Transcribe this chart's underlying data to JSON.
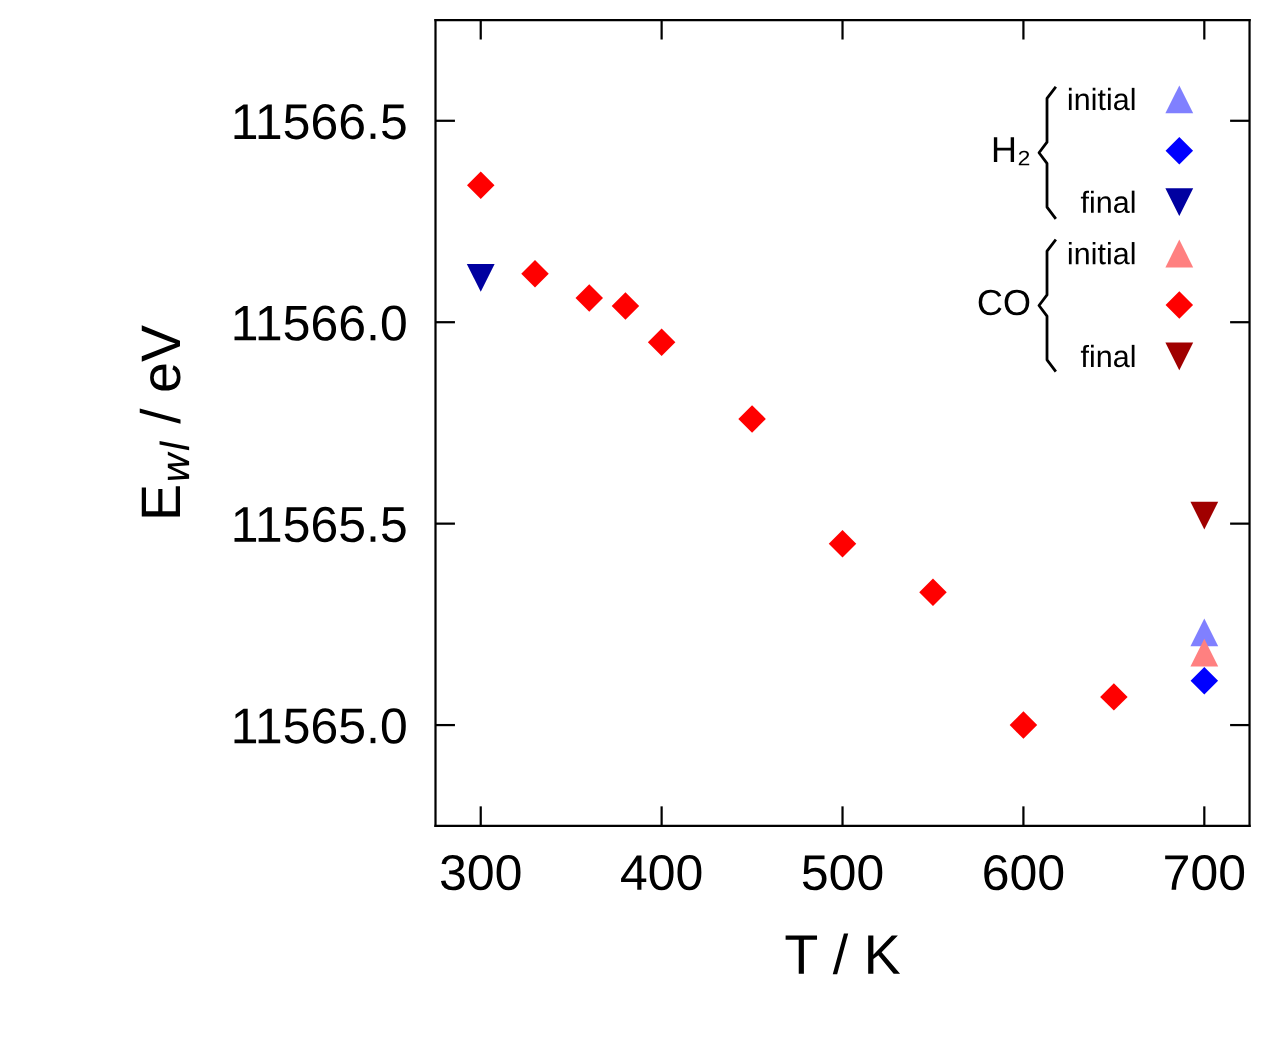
{
  "chart_data": {
    "type": "scatter",
    "xlabel": "T / K",
    "ylabel": "E$_{wl}$ / eV",
    "xlim": [
      275,
      725
    ],
    "xticks": [
      300,
      400,
      500,
      600,
      700
    ],
    "ylim": [
      11564.75,
      11566.75
    ],
    "yticks": [
      {
        "value": 11565.0,
        "label": "11565.0"
      },
      {
        "value": 11565.5,
        "label": "11565.5"
      },
      {
        "value": 11566.0,
        "label": "11566.0"
      },
      {
        "value": 11566.5,
        "label": "11566.5"
      }
    ],
    "grid": false,
    "legend": "top right",
    "annotations": [
      "H₂",
      "CO"
    ],
    "series": [
      {
        "name": "initial",
        "color": "#8080ff",
        "marker": "triangle",
        "x": [
          700
        ],
        "values": [
          11565.23
        ]
      },
      {
        "color": "#0000ff",
        "marker": "diamond",
        "x": [
          700
        ],
        "values": [
          11565.11
        ]
      },
      {
        "name": "final",
        "color": "#0000a0",
        "marker": "triangle_down",
        "x": [
          300
        ],
        "values": [
          11566.11
        ]
      },
      {
        "name": "initial",
        "color": "#ff8080",
        "marker": "triangle",
        "x": [
          700
        ],
        "values": [
          11565.18
        ]
      },
      {
        "color": "#ff0000",
        "marker": "diamond",
        "x": [
          300,
          330,
          360,
          380,
          400,
          450,
          500,
          550,
          600,
          650
        ],
        "values": [
          11566.34,
          11566.12,
          11566.06,
          11566.04,
          11565.95,
          11565.76,
          11565.45,
          11565.33,
          11565.0,
          11565.07
        ]
      },
      {
        "name": "final",
        "color": "#a00000",
        "marker": "triangle_down",
        "x": [
          700
        ],
        "values": [
          11565.52
        ]
      }
    ]
  }
}
